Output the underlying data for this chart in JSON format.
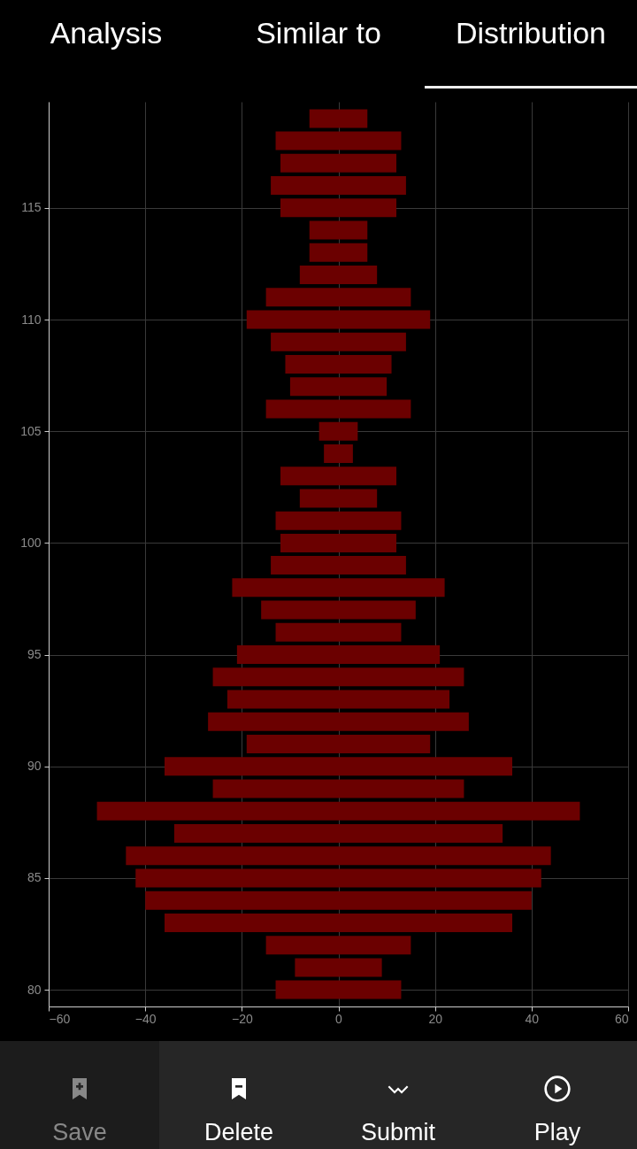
{
  "chart_data": {
    "type": "bar",
    "orientation": "horizontal",
    "color": "#6b0000",
    "grid": true,
    "x": [
      80,
      81,
      82,
      83,
      84,
      85,
      86,
      87,
      88,
      89,
      90,
      91,
      92,
      93,
      94,
      95,
      96,
      97,
      98,
      99,
      100,
      101,
      102,
      103,
      104,
      105,
      106,
      107,
      108,
      109,
      110,
      111,
      112,
      113,
      114,
      115,
      116,
      117,
      118,
      119
    ],
    "base": [
      -13,
      -9,
      -15,
      -36,
      -40,
      -42,
      -44,
      -34,
      -50,
      -26,
      -36,
      -19,
      -27,
      -23,
      -26,
      -21,
      -13,
      -16,
      -22,
      -14,
      -12,
      -13,
      -8,
      -12,
      -3,
      -4,
      -15,
      -10,
      -11,
      -14,
      -19,
      -15,
      -8,
      -6,
      -6,
      -12,
      -14,
      -12,
      -13,
      -6
    ],
    "values": [
      26,
      18,
      30,
      72,
      80,
      84,
      88,
      68,
      100,
      52,
      72,
      38,
      54,
      46,
      52,
      42,
      26,
      32,
      44,
      28,
      24,
      26,
      16,
      24,
      6,
      8,
      30,
      20,
      22,
      28,
      38,
      30,
      16,
      12,
      12,
      24,
      28,
      24,
      26,
      12
    ],
    "xlim": [
      -60,
      60
    ],
    "xticks": [
      -60,
      -40,
      -20,
      0,
      20,
      40,
      60
    ],
    "ylim": [
      79.45,
      119.55
    ],
    "yticks": [
      80,
      85,
      90,
      95,
      100,
      105,
      110,
      115
    ],
    "annotations": [
      "Analysis",
      "Similar to",
      "Distribution",
      "Save",
      "Delete",
      "Submit",
      "Play"
    ]
  }
}
